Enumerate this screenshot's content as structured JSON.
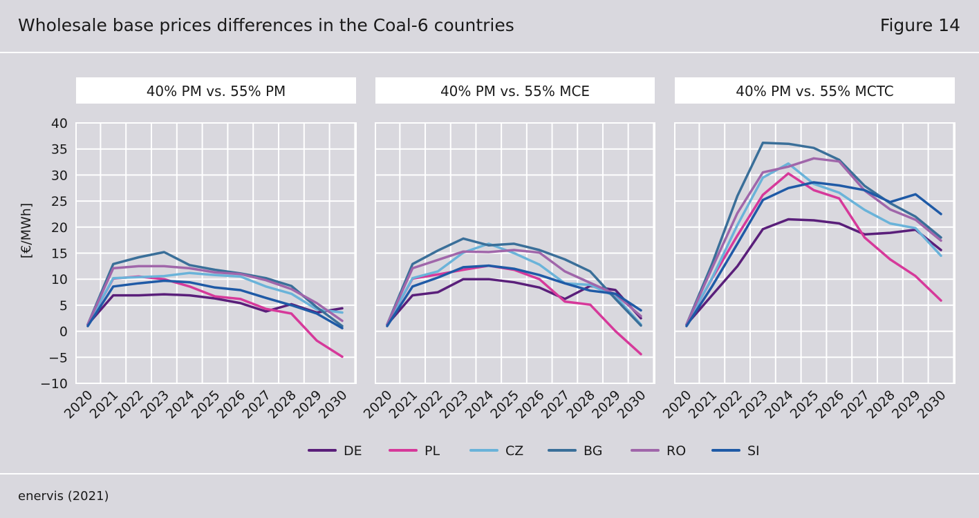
{
  "header": {
    "title": "Wholesale base prices differences in the Coal-6 countries",
    "figure": "Figure 14"
  },
  "footer": {
    "source": "enervis (2021)"
  },
  "colors": {
    "DE": "#5a1f7a",
    "PL": "#d6399a",
    "CZ": "#6ab3d9",
    "BG": "#3a6f99",
    "RO": "#a066aa",
    "SI": "#1f5aa6"
  },
  "chart_data": [
    {
      "type": "line",
      "title": "40% PM vs. 55% PM",
      "ylabel": "[€/MWh]",
      "ylim": [
        -10,
        40
      ],
      "yticks": [
        "40",
        "35",
        "30",
        "25",
        "20",
        "15",
        "10",
        "5",
        "0",
        "−5",
        "−10"
      ],
      "x": [
        "2020",
        "2021",
        "2022",
        "2023",
        "2024",
        "2025",
        "2026",
        "2027",
        "2028",
        "2029",
        "2030"
      ],
      "series": [
        {
          "name": "DE",
          "values": [
            1.3,
            6.9,
            6.9,
            7.1,
            6.9,
            6.3,
            5.4,
            3.8,
            5.2,
            3.6,
            4.4
          ]
        },
        {
          "name": "PL",
          "values": [
            1.3,
            10.1,
            10.5,
            10.0,
            8.6,
            6.7,
            6.2,
            4.3,
            3.4,
            -1.8,
            -4.9
          ]
        },
        {
          "name": "CZ",
          "values": [
            1.3,
            10.2,
            10.4,
            10.6,
            11.2,
            10.8,
            10.5,
            8.6,
            7.2,
            4.2,
            3.6
          ]
        },
        {
          "name": "BG",
          "values": [
            1.3,
            12.9,
            14.2,
            15.2,
            12.7,
            11.8,
            11.1,
            10.2,
            8.7,
            4.6,
            1.0
          ]
        },
        {
          "name": "RO",
          "values": [
            1.3,
            12.1,
            12.5,
            12.5,
            12.1,
            11.3,
            11.0,
            9.8,
            8.1,
            5.4,
            2.0
          ]
        },
        {
          "name": "SI",
          "values": [
            1.0,
            8.6,
            9.2,
            9.7,
            9.4,
            8.4,
            7.9,
            6.4,
            5.0,
            3.4,
            0.6
          ]
        }
      ]
    },
    {
      "type": "line",
      "title": "40% PM vs. 55% MCE",
      "ylim": [
        -10,
        40
      ],
      "x": [
        "2020",
        "2021",
        "2022",
        "2023",
        "2024",
        "2025",
        "2026",
        "2027",
        "2028",
        "2029",
        "2030"
      ],
      "series": [
        {
          "name": "DE",
          "values": [
            1.3,
            6.9,
            7.5,
            10.0,
            10.0,
            9.4,
            8.4,
            6.2,
            8.7,
            7.9,
            2.5
          ]
        },
        {
          "name": "PL",
          "values": [
            1.3,
            10.1,
            10.9,
            11.8,
            12.6,
            11.8,
            10.0,
            5.7,
            5.1,
            0.0,
            -4.4
          ]
        },
        {
          "name": "CZ",
          "values": [
            1.3,
            10.2,
            11.5,
            15.1,
            16.8,
            15.0,
            12.8,
            9.2,
            8.9,
            6.7,
            1.3
          ]
        },
        {
          "name": "BG",
          "values": [
            1.3,
            12.9,
            15.5,
            17.8,
            16.5,
            16.8,
            15.6,
            13.8,
            11.5,
            6.2,
            1.1
          ]
        },
        {
          "name": "RO",
          "values": [
            1.3,
            12.1,
            13.7,
            15.3,
            15.2,
            15.6,
            15.1,
            11.5,
            9.3,
            7.1,
            2.9
          ]
        },
        {
          "name": "SI",
          "values": [
            1.0,
            8.6,
            10.3,
            12.3,
            12.6,
            12.0,
            10.8,
            9.2,
            7.8,
            7.2,
            4.0
          ]
        }
      ]
    },
    {
      "type": "line",
      "title": "40% PM vs. 55% MCTC",
      "ylim": [
        -10,
        40
      ],
      "x": [
        "2020",
        "2021",
        "2022",
        "2023",
        "2024",
        "2025",
        "2026",
        "2027",
        "2028",
        "2029",
        "2030"
      ],
      "series": [
        {
          "name": "DE",
          "values": [
            1.3,
            6.9,
            12.5,
            19.6,
            21.5,
            21.3,
            20.7,
            18.6,
            18.9,
            19.5,
            15.6
          ]
        },
        {
          "name": "PL",
          "values": [
            1.3,
            10.1,
            18.4,
            26.2,
            30.3,
            27.1,
            25.5,
            18.0,
            13.8,
            10.6,
            5.9
          ]
        },
        {
          "name": "CZ",
          "values": [
            1.3,
            10.2,
            20.4,
            29.5,
            32.2,
            28.3,
            26.6,
            23.3,
            20.7,
            19.8,
            14.5
          ]
        },
        {
          "name": "BG",
          "values": [
            1.3,
            12.9,
            26.0,
            36.2,
            36.0,
            35.2,
            32.9,
            27.9,
            24.6,
            22.0,
            18.0
          ]
        },
        {
          "name": "RO",
          "values": [
            1.3,
            12.1,
            22.7,
            30.5,
            31.6,
            33.2,
            32.6,
            27.0,
            23.4,
            21.4,
            17.4
          ]
        },
        {
          "name": "SI",
          "values": [
            1.0,
            8.6,
            16.8,
            25.2,
            27.5,
            28.6,
            28.0,
            27.1,
            24.8,
            26.3,
            22.5
          ]
        }
      ]
    }
  ],
  "legend": [
    "DE",
    "PL",
    "CZ",
    "BG",
    "RO",
    "SI"
  ]
}
